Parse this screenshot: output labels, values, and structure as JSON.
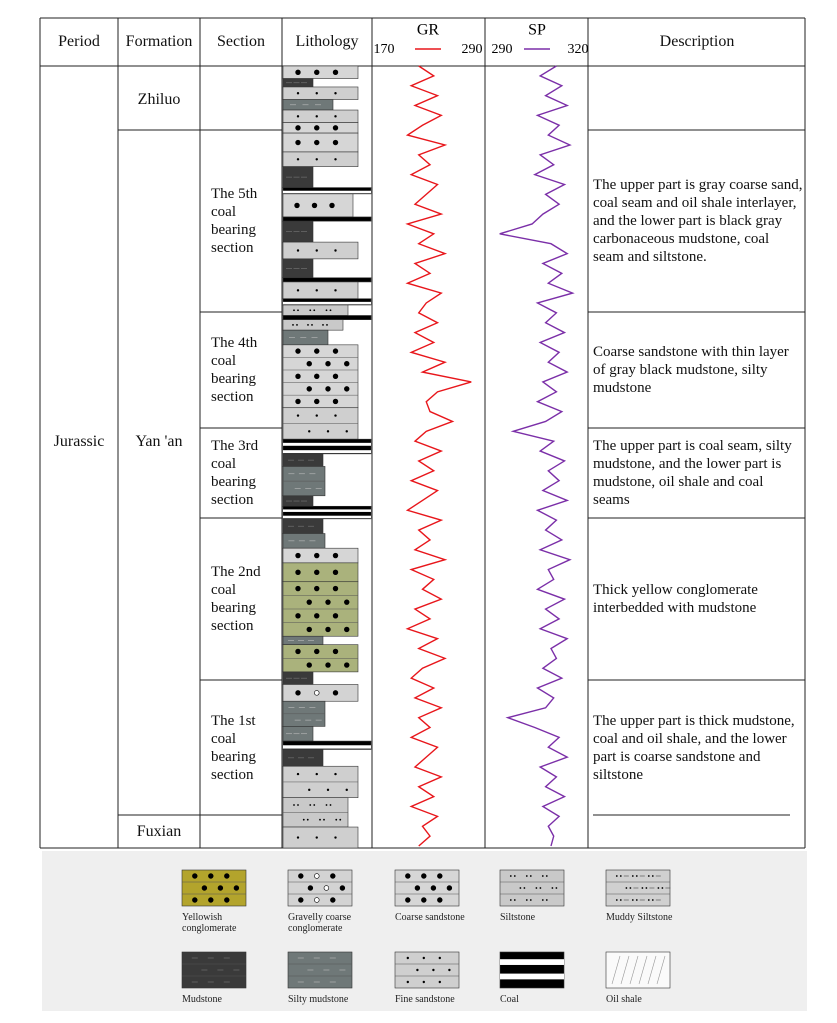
{
  "header": {
    "period": "Period",
    "formation": "Formation",
    "section": "Section",
    "lithology": "Lithology",
    "description": "Description"
  },
  "gr_curve": {
    "label": "GR",
    "min": 170,
    "max": 290,
    "color": "#e8161b",
    "values": [
      215,
      235,
      205,
      240,
      210,
      245,
      220,
      200,
      250,
      215,
      230,
      205,
      240,
      225,
      210,
      245,
      200,
      235,
      215,
      250,
      210,
      230,
      200,
      245,
      225,
      215,
      240,
      210,
      235,
      205,
      250,
      220,
      285,
      240,
      225,
      230,
      260,
      225,
      210,
      245,
      215,
      235,
      205,
      240,
      220,
      200,
      245,
      215,
      230,
      210,
      250,
      205,
      235,
      220,
      245,
      210,
      230,
      200,
      240,
      215,
      250,
      220,
      205,
      235,
      210,
      245,
      215,
      230,
      205,
      240,
      225,
      210,
      245,
      215,
      235,
      205,
      240,
      220,
      230,
      215
    ]
  },
  "sp_curve": {
    "label": "SP",
    "min": 290,
    "max": 320,
    "color": "#7b2fa8",
    "values": [
      312,
      306,
      314,
      308,
      316,
      305,
      313,
      309,
      317,
      306,
      311,
      304,
      315,
      308,
      313,
      307,
      303,
      291,
      310,
      316,
      307,
      314,
      309,
      318,
      305,
      312,
      308,
      315,
      306,
      313,
      309,
      316,
      307,
      312,
      305,
      314,
      308,
      296,
      311,
      306,
      315,
      309,
      313,
      307,
      316,
      305,
      312,
      308,
      314,
      306,
      317,
      309,
      311,
      305,
      315,
      308,
      313,
      306,
      316,
      310,
      312,
      307,
      314,
      305,
      311,
      308,
      294,
      304,
      313,
      309,
      316,
      306,
      312,
      308,
      315,
      307,
      313,
      309,
      311,
      310
    ]
  },
  "period": "Jurassic",
  "formations": [
    "Zhiluo",
    "Yan 'an",
    "Fuxian"
  ],
  "sections": [
    {
      "label": "The 5th coal bearing section",
      "description": "The upper part is gray coarse sand, coal seam and oil shale interlayer, and the lower part is black gray carbonaceous mudstone, coal seam and siltstone."
    },
    {
      "label": "The 4th coal bearing section",
      "description": "Coarse sandstone with thin layer of gray black mudstone, silty mudstone"
    },
    {
      "label": "The 3rd coal bearing section",
      "description": "The upper part is coal seam, silty mudstone, and the lower part is mudstone, oil shale and coal seams"
    },
    {
      "label": "The 2nd coal bearing section",
      "description": "Thick yellow conglomerate interbedded with mudstone"
    },
    {
      "label": "The 1st coal bearing section",
      "description": "The upper part is thick mudstone, coal and oil shale, and the lower part is coarse sandstone and siltstone"
    }
  ],
  "legend": [
    "Yellowish conglomerate",
    "Gravelly coarse conglomerate",
    "Coarse sandstone",
    "Siltstone",
    "Muddy Siltstone",
    "Mudstone",
    "Silty mudstone",
    "Fine sandstone",
    "Coal",
    "Oil shale"
  ]
}
